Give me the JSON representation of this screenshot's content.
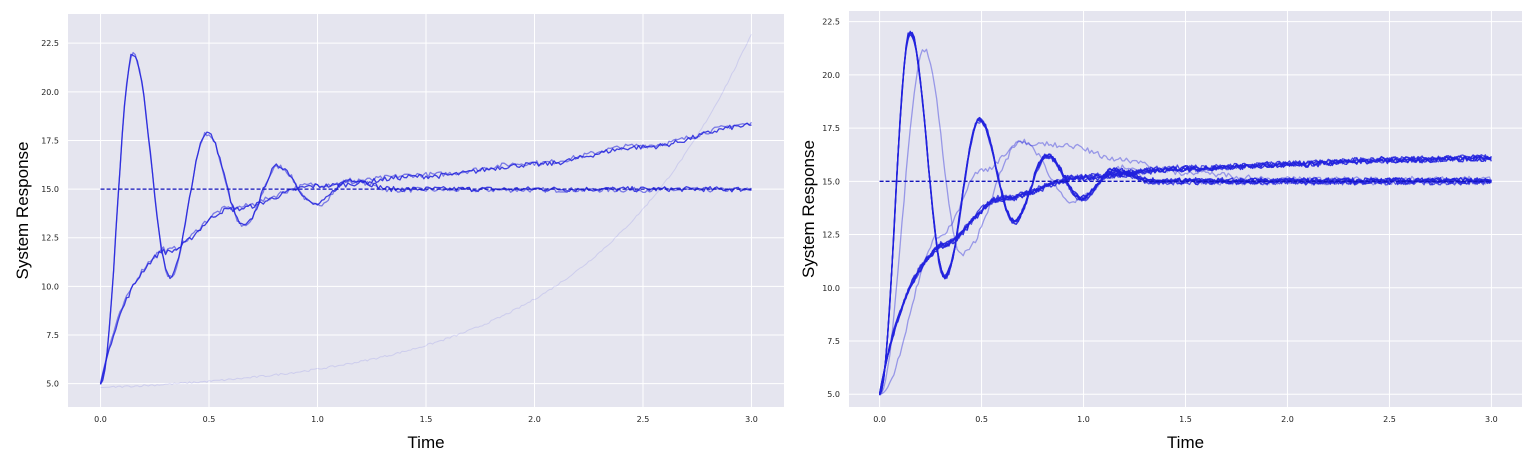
{
  "style": {
    "panel_bg": "#e5e5ef",
    "grid": "#ffffff",
    "line_color": "#2222dd",
    "ref_color": "#1515bb"
  },
  "chart_data": [
    {
      "type": "line",
      "title": "",
      "xlabel": "Time",
      "ylabel": "System Response",
      "xlim": [
        -0.15,
        3.15
      ],
      "ylim": [
        3.8,
        24.0
      ],
      "xticks": [
        0.0,
        0.5,
        1.0,
        1.5,
        2.0,
        2.5,
        3.0
      ],
      "yticks": [
        5.0,
        7.5,
        10.0,
        12.5,
        15.0,
        17.5,
        20.0,
        22.5
      ],
      "xtick_labels": [
        "0.0",
        "0.5",
        "1.0",
        "1.5",
        "2.0",
        "2.5",
        "3.0"
      ],
      "ytick_labels": [
        "5.0",
        "7.5",
        "10.0",
        "12.5",
        "15.0",
        "17.5",
        "20.0",
        "22.5"
      ],
      "grid": true,
      "reference": {
        "name": "setpoint",
        "y": 15.0,
        "x": [
          0.0,
          3.0
        ],
        "style": "dashed"
      },
      "series": [
        {
          "kind": "underdamped",
          "count": 2,
          "opacity": [
            0.55,
            0.85
          ],
          "x_range": [
            0,
            3
          ],
          "start": 5.0,
          "settle": 15.0,
          "peaks": [
            [
              0.15,
              22.0
            ],
            [
              0.32,
              10.5
            ],
            [
              0.49,
              17.9
            ],
            [
              0.66,
              13.1
            ],
            [
              0.82,
              16.2
            ],
            [
              0.99,
              14.2
            ],
            [
              1.15,
              15.5
            ]
          ]
        },
        {
          "kind": "drifting",
          "count": 2,
          "opacity": [
            0.55,
            0.85
          ],
          "x_range": [
            0,
            3
          ],
          "start": 5.0,
          "points": [
            [
              0.3,
              11.8
            ],
            [
              0.6,
              14.0
            ],
            [
              1.0,
              15.2
            ],
            [
              1.5,
              15.7
            ],
            [
              2.0,
              16.3
            ],
            [
              2.5,
              17.2
            ],
            [
              3.0,
              18.3
            ]
          ]
        },
        {
          "kind": "exponential",
          "count": 1,
          "opacity": [
            0.12
          ],
          "x_range": [
            0,
            3
          ],
          "start": 4.8,
          "end": 23.0
        }
      ]
    },
    {
      "type": "line",
      "title": "",
      "xlabel": "Time",
      "ylabel": "System Response",
      "xlim": [
        -0.15,
        3.15
      ],
      "ylim": [
        4.4,
        23.0
      ],
      "xticks": [
        0.0,
        0.5,
        1.0,
        1.5,
        2.0,
        2.5,
        3.0
      ],
      "yticks": [
        5.0,
        7.5,
        10.0,
        12.5,
        15.0,
        17.5,
        20.0,
        22.5
      ],
      "xtick_labels": [
        "0.0",
        "0.5",
        "1.0",
        "1.5",
        "2.0",
        "2.5",
        "3.0"
      ],
      "ytick_labels": [
        "5.0",
        "7.5",
        "10.0",
        "12.5",
        "15.0",
        "17.5",
        "20.0",
        "22.5"
      ],
      "grid": true,
      "reference": {
        "name": "setpoint",
        "y": 15.0,
        "x": [
          0.0,
          3.0
        ],
        "style": "dashed"
      },
      "series": [
        {
          "kind": "underdamped",
          "count": 6,
          "opacity": [
            0.7,
            0.8,
            0.9,
            0.75,
            0.85,
            0.95
          ],
          "x_range": [
            0,
            3
          ],
          "start": 5.0,
          "settle": 15.0,
          "peaks": [
            [
              0.15,
              22.0
            ],
            [
              0.32,
              10.5
            ],
            [
              0.49,
              17.9
            ],
            [
              0.66,
              13.1
            ],
            [
              0.82,
              16.2
            ],
            [
              0.99,
              14.2
            ],
            [
              1.15,
              15.5
            ]
          ]
        },
        {
          "kind": "underdamped",
          "count": 1,
          "opacity": [
            0.4
          ],
          "x_range": [
            0,
            3
          ],
          "start": 5.0,
          "settle": 15.0,
          "peaks": [
            [
              0.22,
              21.2
            ],
            [
              0.4,
              11.6
            ],
            [
              0.7,
              16.9
            ],
            [
              0.95,
              14.1
            ],
            [
              1.2,
              15.7
            ]
          ]
        },
        {
          "kind": "drifting",
          "count": 6,
          "opacity": [
            0.7,
            0.8,
            0.9,
            0.75,
            0.85,
            0.95
          ],
          "x_range": [
            0,
            3
          ],
          "start": 5.0,
          "points": [
            [
              0.3,
              12.0
            ],
            [
              0.6,
              14.2
            ],
            [
              1.0,
              15.2
            ],
            [
              1.5,
              15.6
            ],
            [
              2.0,
              15.8
            ],
            [
              2.5,
              16.0
            ],
            [
              3.0,
              16.1
            ]
          ]
        },
        {
          "kind": "slow",
          "count": 1,
          "opacity": [
            0.4
          ],
          "x_range": [
            0,
            3
          ],
          "start": 5.0,
          "points": [
            [
              0.3,
              12.5
            ],
            [
              0.5,
              15.5
            ],
            [
              0.7,
              16.8
            ],
            [
              0.9,
              16.7
            ],
            [
              1.2,
              16.0
            ],
            [
              1.5,
              15.4
            ],
            [
              2.0,
              15.1
            ],
            [
              3.0,
              15.1
            ]
          ]
        }
      ]
    }
  ]
}
